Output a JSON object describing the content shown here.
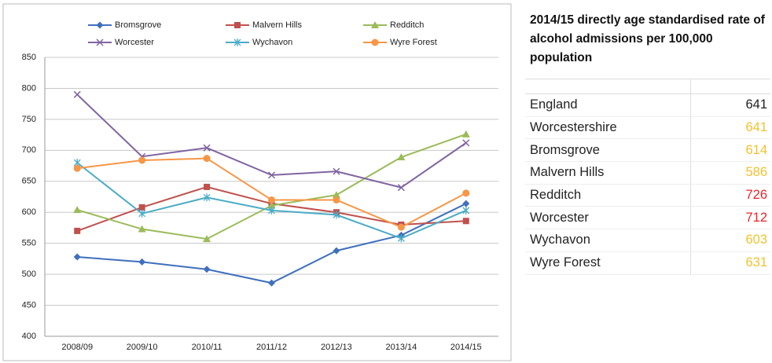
{
  "chart_data": {
    "type": "line",
    "categories": [
      "2008/09",
      "2009/10",
      "2010/11",
      "2011/12",
      "2012/13",
      "2013/14",
      "2014/15"
    ],
    "series": [
      {
        "name": "Bromsgrove",
        "color": "#3f6fbf",
        "marker": "diamond",
        "values": [
          528,
          520,
          508,
          486,
          538,
          563,
          614
        ]
      },
      {
        "name": "Malvern Hills",
        "color": "#c0504d",
        "marker": "square",
        "values": [
          570,
          608,
          641,
          614,
          600,
          580,
          586
        ]
      },
      {
        "name": "Redditch",
        "color": "#9bbb59",
        "marker": "triangle",
        "values": [
          604,
          573,
          557,
          611,
          628,
          689,
          726
        ]
      },
      {
        "name": "Worcester",
        "color": "#8064a2",
        "marker": "x",
        "values": [
          790,
          690,
          704,
          660,
          666,
          640,
          712
        ]
      },
      {
        "name": "Wychavon",
        "color": "#4bacc6",
        "marker": "asterisk",
        "values": [
          680,
          598,
          624,
          603,
          596,
          558,
          603
        ]
      },
      {
        "name": "Wyre Forest",
        "color": "#f79646",
        "marker": "circle",
        "values": [
          671,
          684,
          687,
          620,
          620,
          576,
          631
        ]
      }
    ],
    "ylim": [
      400,
      850
    ],
    "yticks": [
      400,
      450,
      500,
      550,
      600,
      650,
      700,
      750,
      800,
      850
    ],
    "grid": true,
    "legend": "top"
  },
  "table": {
    "title": "2014/15 directly age standardised rate of alcohol admissions per 100,000 population",
    "rows": [
      {
        "name": "England",
        "value": 641,
        "color": "#222222"
      },
      {
        "name": "Worcestershire",
        "value": 641,
        "color": "#f2c12e"
      },
      {
        "name": "Bromsgrove",
        "value": 614,
        "color": "#f2c12e"
      },
      {
        "name": "Malvern Hills",
        "value": 586,
        "color": "#f2c12e"
      },
      {
        "name": "Redditch",
        "value": 726,
        "color": "#e8262a"
      },
      {
        "name": "Worcester",
        "value": 712,
        "color": "#e8262a"
      },
      {
        "name": "Wychavon",
        "value": 603,
        "color": "#f2c12e"
      },
      {
        "name": "Wyre Forest",
        "value": 631,
        "color": "#f2c12e"
      }
    ]
  }
}
